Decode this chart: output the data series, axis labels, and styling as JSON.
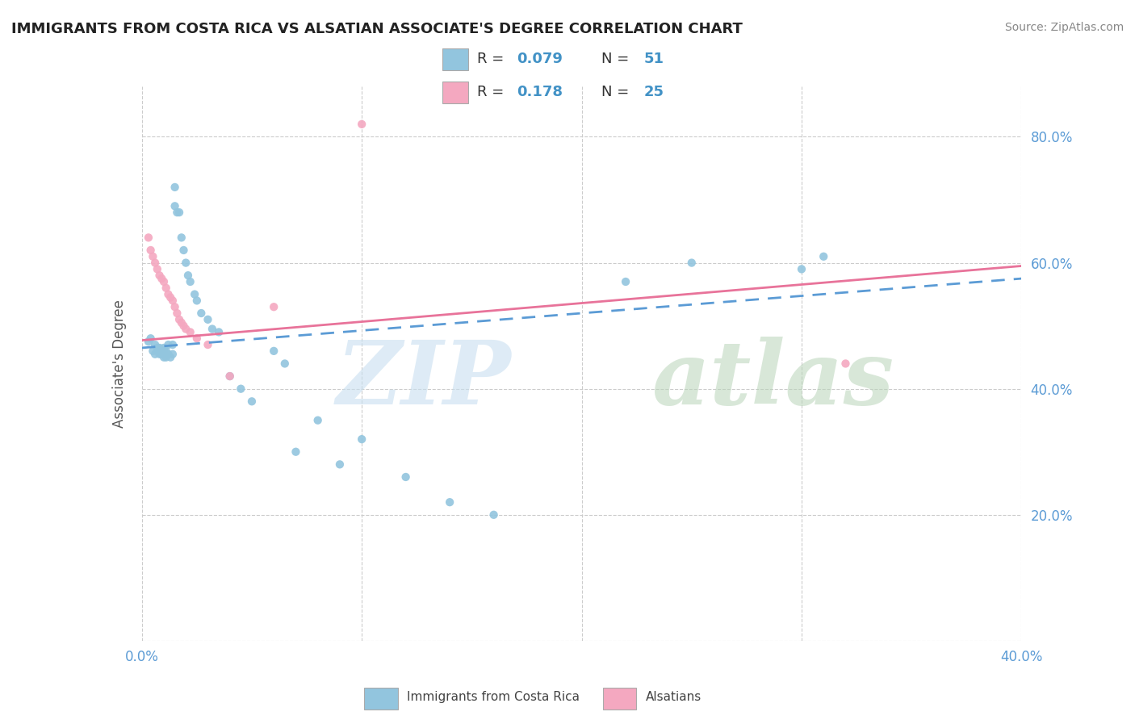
{
  "title": "IMMIGRANTS FROM COSTA RICA VS ALSATIAN ASSOCIATE'S DEGREE CORRELATION CHART",
  "source": "Source: ZipAtlas.com",
  "xlabel_label": "Immigrants from Costa Rica",
  "xlabel2_label": "Alsatians",
  "ylabel": "Associate's Degree",
  "xlim": [
    0.0,
    0.4
  ],
  "ylim": [
    0.0,
    0.88
  ],
  "x_ticks": [
    0.0,
    0.1,
    0.2,
    0.3,
    0.4
  ],
  "x_tick_labels": [
    "0.0%",
    "",
    "",
    "",
    "40.0%"
  ],
  "y_ticks": [
    0.0,
    0.2,
    0.4,
    0.6,
    0.8
  ],
  "y_tick_labels_right": [
    "",
    "20.0%",
    "40.0%",
    "60.0%",
    "80.0%"
  ],
  "legend_R1": "0.079",
  "legend_N1": "51",
  "legend_R2": "0.178",
  "legend_N2": "25",
  "blue_color": "#92c5de",
  "pink_color": "#f4a8c0",
  "blue_line_color": "#5b9bd5",
  "pink_line_color": "#e8739a",
  "watermark_zip": "ZIP",
  "watermark_atlas": "atlas",
  "blue_line_y0": 0.465,
  "blue_line_y1": 0.575,
  "pink_line_y0": 0.477,
  "pink_line_y1": 0.595,
  "blue_scatter_x": [
    0.003,
    0.004,
    0.005,
    0.006,
    0.006,
    0.007,
    0.007,
    0.008,
    0.008,
    0.009,
    0.01,
    0.01,
    0.01,
    0.011,
    0.011,
    0.012,
    0.012,
    0.013,
    0.014,
    0.014,
    0.015,
    0.015,
    0.016,
    0.017,
    0.018,
    0.019,
    0.02,
    0.021,
    0.022,
    0.024,
    0.025,
    0.027,
    0.03,
    0.032,
    0.035,
    0.04,
    0.045,
    0.05,
    0.06,
    0.065,
    0.07,
    0.08,
    0.09,
    0.1,
    0.12,
    0.14,
    0.16,
    0.22,
    0.25,
    0.3,
    0.31
  ],
  "blue_scatter_y": [
    0.475,
    0.48,
    0.46,
    0.455,
    0.47,
    0.46,
    0.465,
    0.455,
    0.465,
    0.455,
    0.45,
    0.46,
    0.465,
    0.45,
    0.46,
    0.455,
    0.47,
    0.45,
    0.47,
    0.455,
    0.72,
    0.69,
    0.68,
    0.68,
    0.64,
    0.62,
    0.6,
    0.58,
    0.57,
    0.55,
    0.54,
    0.52,
    0.51,
    0.495,
    0.49,
    0.42,
    0.4,
    0.38,
    0.46,
    0.44,
    0.3,
    0.35,
    0.28,
    0.32,
    0.26,
    0.22,
    0.2,
    0.57,
    0.6,
    0.59,
    0.61
  ],
  "pink_scatter_x": [
    0.003,
    0.004,
    0.005,
    0.006,
    0.007,
    0.008,
    0.009,
    0.01,
    0.011,
    0.012,
    0.013,
    0.014,
    0.015,
    0.016,
    0.017,
    0.018,
    0.019,
    0.02,
    0.022,
    0.025,
    0.03,
    0.04,
    0.06,
    0.1,
    0.32
  ],
  "pink_scatter_y": [
    0.64,
    0.62,
    0.61,
    0.6,
    0.59,
    0.58,
    0.575,
    0.57,
    0.56,
    0.55,
    0.545,
    0.54,
    0.53,
    0.52,
    0.51,
    0.505,
    0.5,
    0.495,
    0.49,
    0.48,
    0.47,
    0.42,
    0.53,
    0.82,
    0.44
  ]
}
